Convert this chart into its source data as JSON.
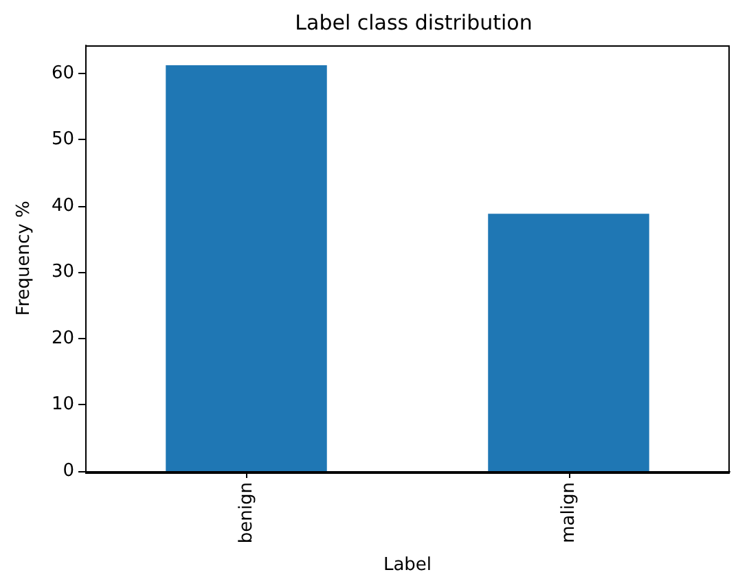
{
  "chart_data": {
    "type": "bar",
    "title": "Label class distribution",
    "xlabel": "Label",
    "ylabel": "Frequency %",
    "categories": [
      "benign",
      "malign"
    ],
    "values": [
      61.2,
      38.8
    ],
    "color": "#1f77b4",
    "ylim": [
      0,
      64.2
    ],
    "yticks": [
      0,
      10,
      20,
      30,
      40,
      50,
      60
    ]
  }
}
